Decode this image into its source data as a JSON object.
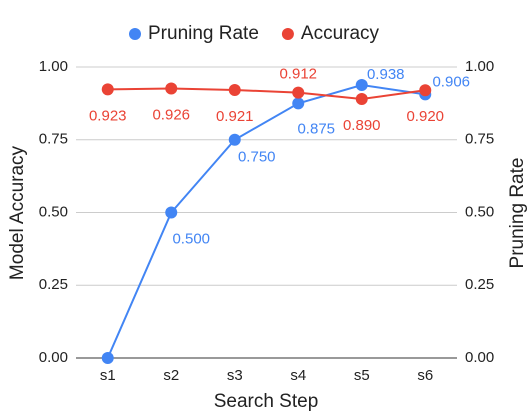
{
  "chart_data": {
    "type": "line",
    "x_label": "Search Step",
    "y_label": "Model Accuracy",
    "y2_label": "Pruning Rate",
    "categories": [
      "s1",
      "s2",
      "s3",
      "s4",
      "s5",
      "s6"
    ],
    "series": [
      {
        "name": "Pruning Rate",
        "color": "#4285f4",
        "axis": "y2",
        "values": [
          0,
          0.5,
          0.75,
          0.875,
          0.938,
          0.906
        ],
        "value_labels": [
          null,
          "0.500",
          "0.750",
          "0.875",
          "0.938",
          "0.906"
        ]
      },
      {
        "name": "Accuracy",
        "color": "#ea4335",
        "values": [
          0.923,
          0.926,
          0.921,
          0.912,
          0.89,
          0.92
        ],
        "value_labels": [
          "0.923",
          "0.926",
          "0.921",
          "0.912",
          "0.890",
          "0.920"
        ]
      }
    ],
    "ylim": [
      0,
      1
    ],
    "yticks": [
      {
        "value": 0,
        "label": "0.00"
      },
      {
        "value": 0.25,
        "label": "0.25"
      },
      {
        "value": 0.5,
        "label": "0.50"
      },
      {
        "value": 0.75,
        "label": "0.75"
      },
      {
        "value": 1,
        "label": "1.00"
      }
    ],
    "y2lim": [
      0,
      1
    ],
    "y2ticks": [
      {
        "value": 0,
        "label": "0.00"
      },
      {
        "value": 0.25,
        "label": "0.25"
      },
      {
        "value": 0.5,
        "label": "0.50"
      },
      {
        "value": 0.75,
        "label": "0.75"
      },
      {
        "value": 1,
        "label": "1.00"
      }
    ],
    "grid": true,
    "legend": "top"
  }
}
